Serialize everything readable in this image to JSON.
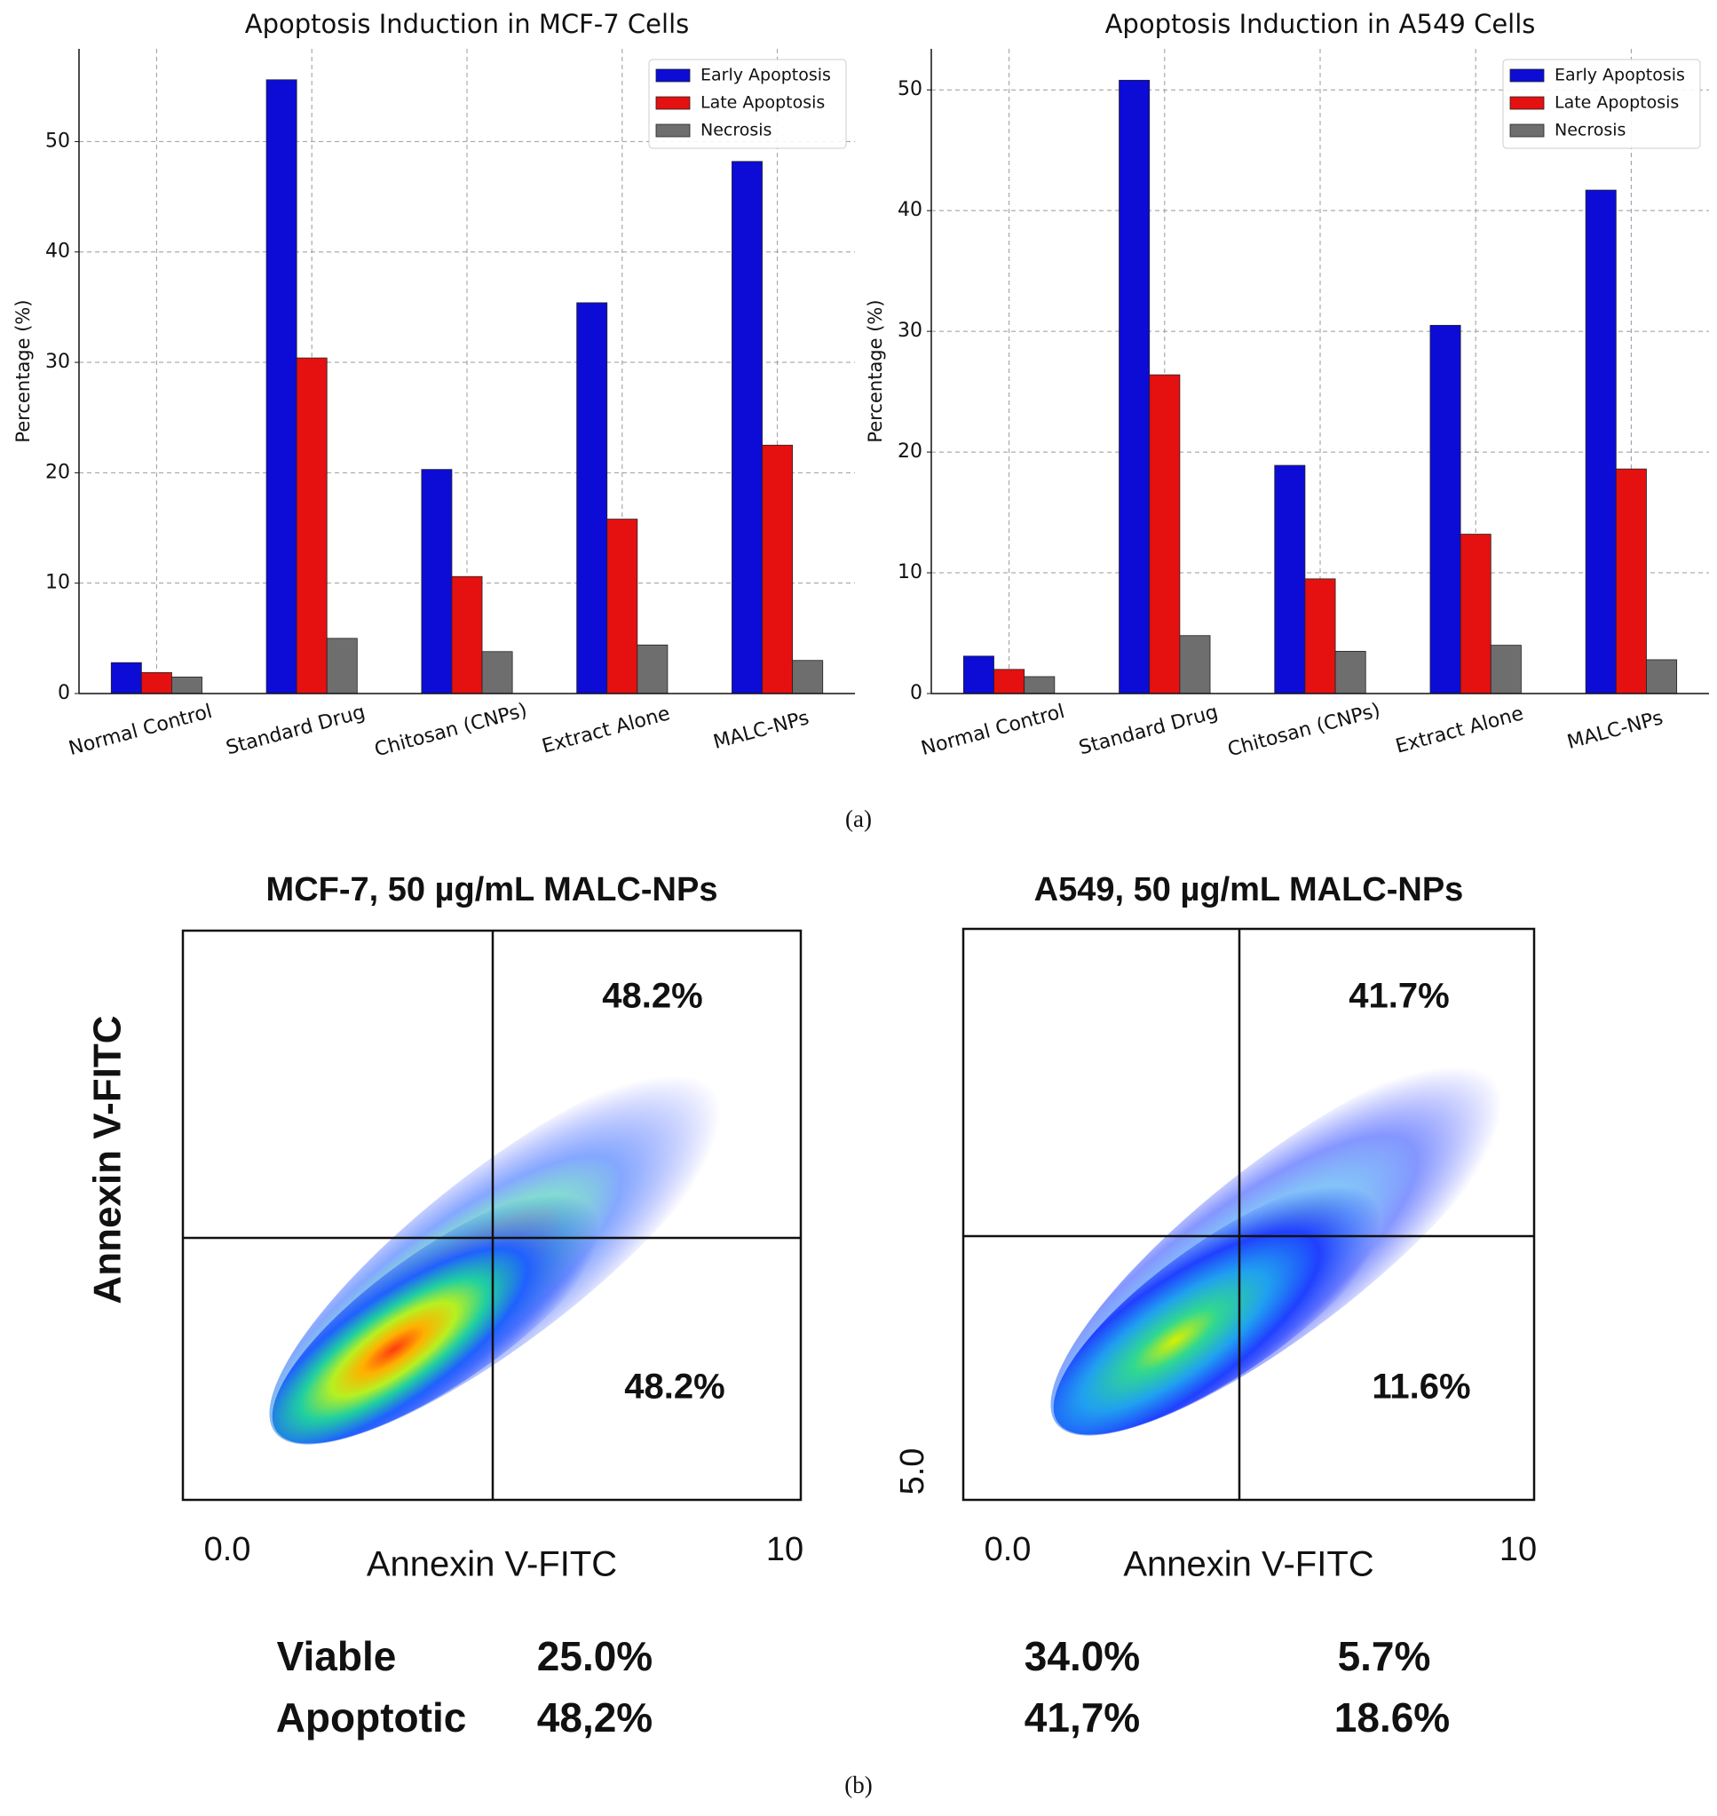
{
  "chart_data": [
    {
      "type": "bar",
      "title": "Apoptosis Induction in MCF-7 Cells",
      "ylabel": "Percentage (%)",
      "categories": [
        "Normal Control",
        "Standard Drug",
        "Chitosan (CNPs)",
        "Extract Alone",
        "MALC-NPs"
      ],
      "series": [
        {
          "name": "Early Apoptosis",
          "color": "#0c0cd6",
          "values": [
            2.8,
            55.6,
            20.3,
            35.4,
            48.2
          ]
        },
        {
          "name": "Late Apoptosis",
          "color": "#e51010",
          "values": [
            1.9,
            30.4,
            10.6,
            15.8,
            22.5
          ]
        },
        {
          "name": "Necrosis",
          "color": "#6e6e6e",
          "values": [
            1.5,
            5.0,
            3.8,
            4.4,
            3.0
          ]
        }
      ],
      "ylim": [
        0,
        58.4
      ],
      "yticks": [
        0,
        10,
        20,
        30,
        40,
        50
      ],
      "grid": true,
      "legend": "upper right"
    },
    {
      "type": "bar",
      "title": "Apoptosis Induction in A549 Cells",
      "ylabel": "Percentage (%)",
      "categories": [
        "Normal Control",
        "Standard Drug",
        "Chitosan (CNPs)",
        "Extract Alone",
        "MALC-NPs"
      ],
      "series": [
        {
          "name": "Early Apoptosis",
          "color": "#0c0cd6",
          "values": [
            3.1,
            50.8,
            18.9,
            30.5,
            41.7
          ]
        },
        {
          "name": "Late Apoptosis",
          "color": "#e51010",
          "values": [
            2.0,
            26.4,
            9.5,
            13.2,
            18.6
          ]
        },
        {
          "name": "Necrosis",
          "color": "#6e6e6e",
          "values": [
            1.4,
            4.8,
            3.5,
            4.0,
            2.8
          ]
        }
      ],
      "ylim": [
        0,
        53.4
      ],
      "yticks": [
        0,
        10,
        20,
        30,
        40,
        50
      ],
      "grid": true,
      "legend": "upper right"
    },
    {
      "type": "flow",
      "title": "MCF-7, 50 µg/mL MALC-NPs",
      "xlabel": "Annexin V-FITC",
      "ylabel": "Annexin V-FITC",
      "xtick_labels": [
        "0.0",
        "10"
      ],
      "upper_right": "48.2%",
      "lower_right": "48.2%"
    },
    {
      "type": "flow",
      "title": "A549, 50 µg/mL MALC-NPs",
      "xlabel": "Annexin V-FITC",
      "ytick_labels": [
        "5.0"
      ],
      "xtick_labels": [
        "0.0",
        "10"
      ],
      "upper_right": "41.7%",
      "lower_right": "11.6%"
    }
  ],
  "summary": [
    [
      "Viable",
      "25.0%",
      "34.0%",
      "5.7%"
    ],
    [
      "Apoptotic",
      "48,2%",
      "41,7%",
      "18.6%"
    ]
  ],
  "panel_labels": [
    "(a)",
    "(b)"
  ]
}
